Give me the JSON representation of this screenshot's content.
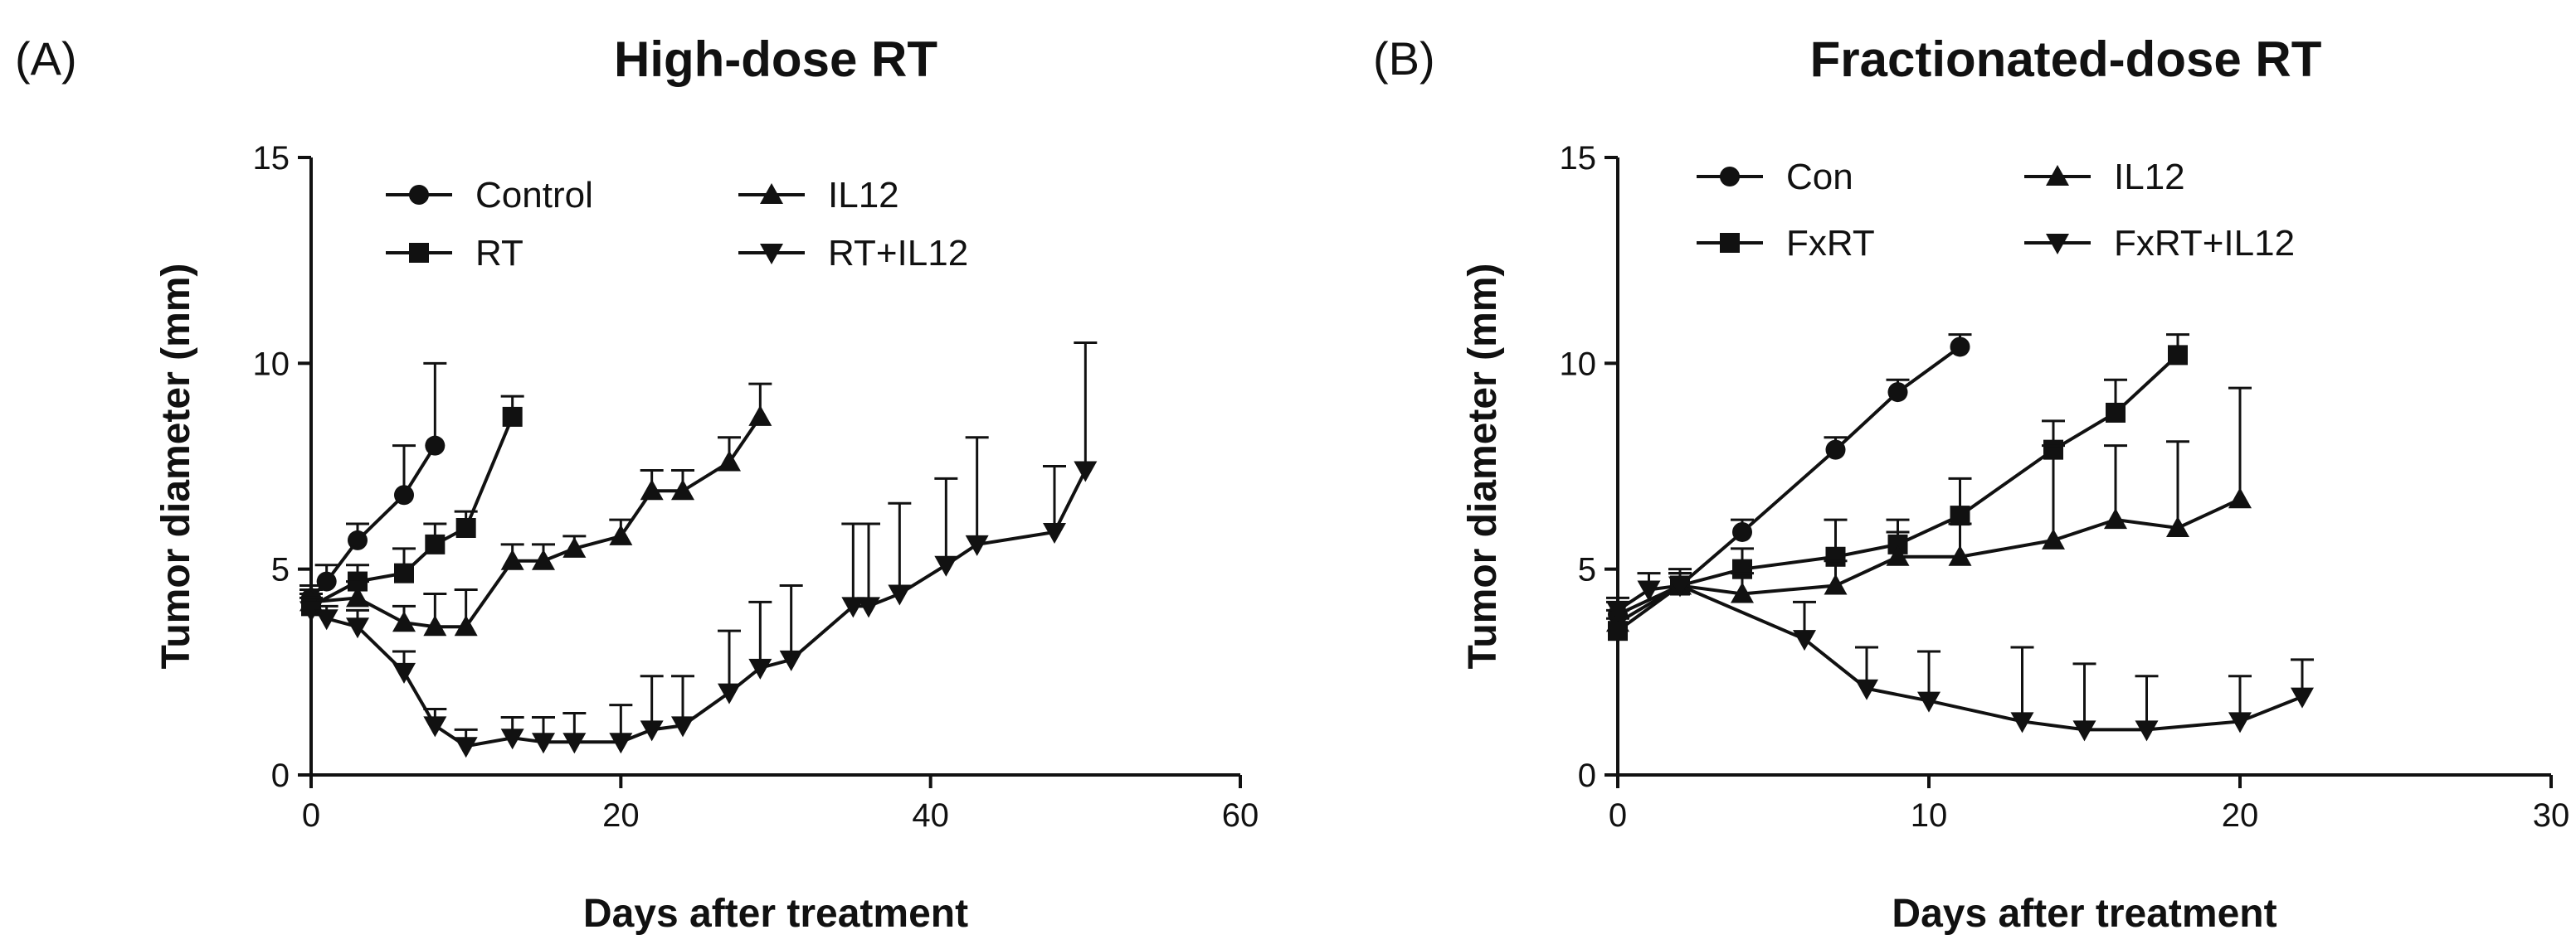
{
  "chart_data": [
    {
      "type": "line",
      "panel_label": "(A)",
      "title": "High-dose RT",
      "xlabel": "Days after treatment",
      "ylabel": "Tumor diameter (mm)",
      "xlim": [
        0,
        60
      ],
      "ylim": [
        0,
        15
      ],
      "xticks": [
        0,
        20,
        40,
        60
      ],
      "yticks": [
        0,
        5,
        10,
        15
      ],
      "grid": false,
      "legend": "top-center",
      "series": [
        {
          "name": "Control",
          "marker": "circle",
          "x": [
            0,
            1,
            3,
            6,
            8
          ],
          "y": [
            4.3,
            4.7,
            5.7,
            6.8,
            8.0
          ],
          "err": [
            0.3,
            0.4,
            0.4,
            1.2,
            2.0
          ]
        },
        {
          "name": "RT",
          "marker": "square",
          "x": [
            0,
            3,
            6,
            8,
            10,
            13
          ],
          "y": [
            4.1,
            4.7,
            4.9,
            5.6,
            6.0,
            8.7
          ],
          "err": [
            0.3,
            0.4,
            0.6,
            0.5,
            0.4,
            0.5
          ]
        },
        {
          "name": "IL12",
          "marker": "triangle-up",
          "x": [
            0,
            3,
            6,
            8,
            10,
            13,
            15,
            17,
            20,
            22,
            24,
            27,
            29
          ],
          "y": [
            4.2,
            4.3,
            3.7,
            3.6,
            3.6,
            5.2,
            5.2,
            5.5,
            5.8,
            6.9,
            6.9,
            7.6,
            8.7
          ],
          "err": [
            0.3,
            0.4,
            0.4,
            0.8,
            0.9,
            0.4,
            0.4,
            0.3,
            0.4,
            0.5,
            0.5,
            0.6,
            0.8
          ]
        },
        {
          "name": "RT+IL12",
          "marker": "triangle-down",
          "x": [
            0,
            1,
            3,
            6,
            8,
            10,
            13,
            15,
            17,
            20,
            22,
            24,
            27,
            29,
            31,
            35,
            36,
            38,
            41,
            43,
            48,
            50
          ],
          "y": [
            4.0,
            3.8,
            3.6,
            2.5,
            1.2,
            0.7,
            0.9,
            0.8,
            0.8,
            0.8,
            1.1,
            1.2,
            2.0,
            2.6,
            2.8,
            4.1,
            4.1,
            4.4,
            5.1,
            5.6,
            5.9,
            7.4
          ],
          "err": [
            0.3,
            0.3,
            0.4,
            0.5,
            0.4,
            0.4,
            0.5,
            0.6,
            0.7,
            0.9,
            1.3,
            1.2,
            1.5,
            1.6,
            1.8,
            2.0,
            2.0,
            2.2,
            2.1,
            2.6,
            1.6,
            3.1
          ]
        }
      ]
    },
    {
      "type": "line",
      "panel_label": "(B)",
      "title": "Fractionated-dose RT",
      "xlabel": "Days after treatment",
      "ylabel": "Tumor diameter (mm)",
      "xlim": [
        0,
        30
      ],
      "ylim": [
        0,
        15
      ],
      "xticks": [
        0,
        10,
        20,
        30
      ],
      "yticks": [
        0,
        5,
        10,
        15
      ],
      "grid": false,
      "legend": "top-center",
      "series": [
        {
          "name": "Con",
          "marker": "circle",
          "x": [
            0,
            2,
            4,
            7,
            9,
            11
          ],
          "y": [
            3.9,
            4.6,
            5.9,
            7.9,
            9.3,
            10.4
          ],
          "err": [
            0.3,
            0.3,
            0.3,
            0.3,
            0.3,
            0.3
          ]
        },
        {
          "name": "FxRT",
          "marker": "square",
          "x": [
            0,
            2,
            4,
            7,
            9,
            11,
            14,
            16,
            18
          ],
          "y": [
            3.5,
            4.6,
            5.0,
            5.3,
            5.6,
            6.3,
            7.9,
            8.8,
            10.2
          ],
          "err": [
            0.3,
            0.3,
            0.5,
            0.9,
            0.6,
            0.9,
            0.7,
            0.8,
            0.5
          ]
        },
        {
          "name": "IL12",
          "marker": "triangle-up",
          "x": [
            0,
            2,
            4,
            7,
            9,
            11,
            14,
            16,
            18,
            20
          ],
          "y": [
            3.7,
            4.6,
            4.4,
            4.6,
            5.3,
            5.3,
            5.7,
            6.2,
            6.0,
            6.7
          ],
          "err": [
            0.3,
            0.3,
            0.5,
            0.6,
            0.6,
            0.8,
            2.3,
            1.8,
            2.1,
            2.7
          ]
        },
        {
          "name": "FxRT+IL12",
          "marker": "triangle-down",
          "x": [
            0,
            1,
            2,
            6,
            8,
            10,
            13,
            15,
            17,
            20,
            22
          ],
          "y": [
            4.0,
            4.5,
            4.6,
            3.3,
            2.1,
            1.8,
            1.3,
            1.1,
            1.1,
            1.3,
            1.9
          ],
          "err": [
            0.3,
            0.4,
            0.4,
            0.9,
            1.0,
            1.2,
            1.8,
            1.6,
            1.3,
            1.1,
            0.9
          ]
        }
      ]
    }
  ]
}
